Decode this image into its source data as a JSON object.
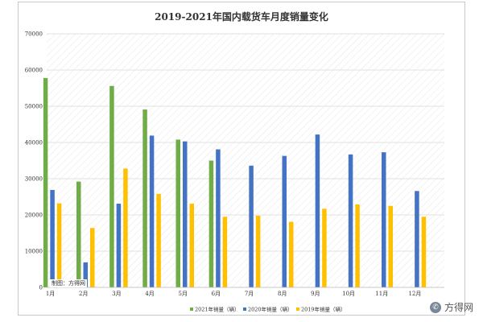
{
  "chart_data": {
    "type": "bar",
    "title": "2019-2021年国内载货车月度销量变化",
    "categories": [
      "1月",
      "2月",
      "3月",
      "4月",
      "5月",
      "6月",
      "7月",
      "8月",
      "9月",
      "10月",
      "11月",
      "12月"
    ],
    "series": [
      {
        "name": "2021年销量（辆）",
        "color": "#70ad47",
        "values": [
          57800,
          29200,
          55600,
          49100,
          40800,
          35000,
          null,
          null,
          null,
          null,
          null,
          null
        ]
      },
      {
        "name": "2020年销量（辆）",
        "color": "#4472c4",
        "values": [
          26900,
          6900,
          23100,
          41900,
          40300,
          38100,
          33600,
          36300,
          42200,
          36700,
          37300,
          26600
        ]
      },
      {
        "name": "2019年销量（辆）",
        "color": "#ffc000",
        "values": [
          23200,
          16400,
          32800,
          25800,
          23100,
          19500,
          19800,
          18100,
          21700,
          22900,
          22500,
          19500
        ]
      }
    ],
    "yticks": [
      0,
      10000,
      20000,
      30000,
      40000,
      50000,
      60000,
      70000
    ],
    "ylim": [
      0,
      70000
    ],
    "grid": true,
    "legend_position": "bottom",
    "xlabel": "",
    "ylabel": ""
  },
  "credit": "制图：方得网",
  "watermark": {
    "icon": "wechat-icon",
    "text": "方得网"
  }
}
